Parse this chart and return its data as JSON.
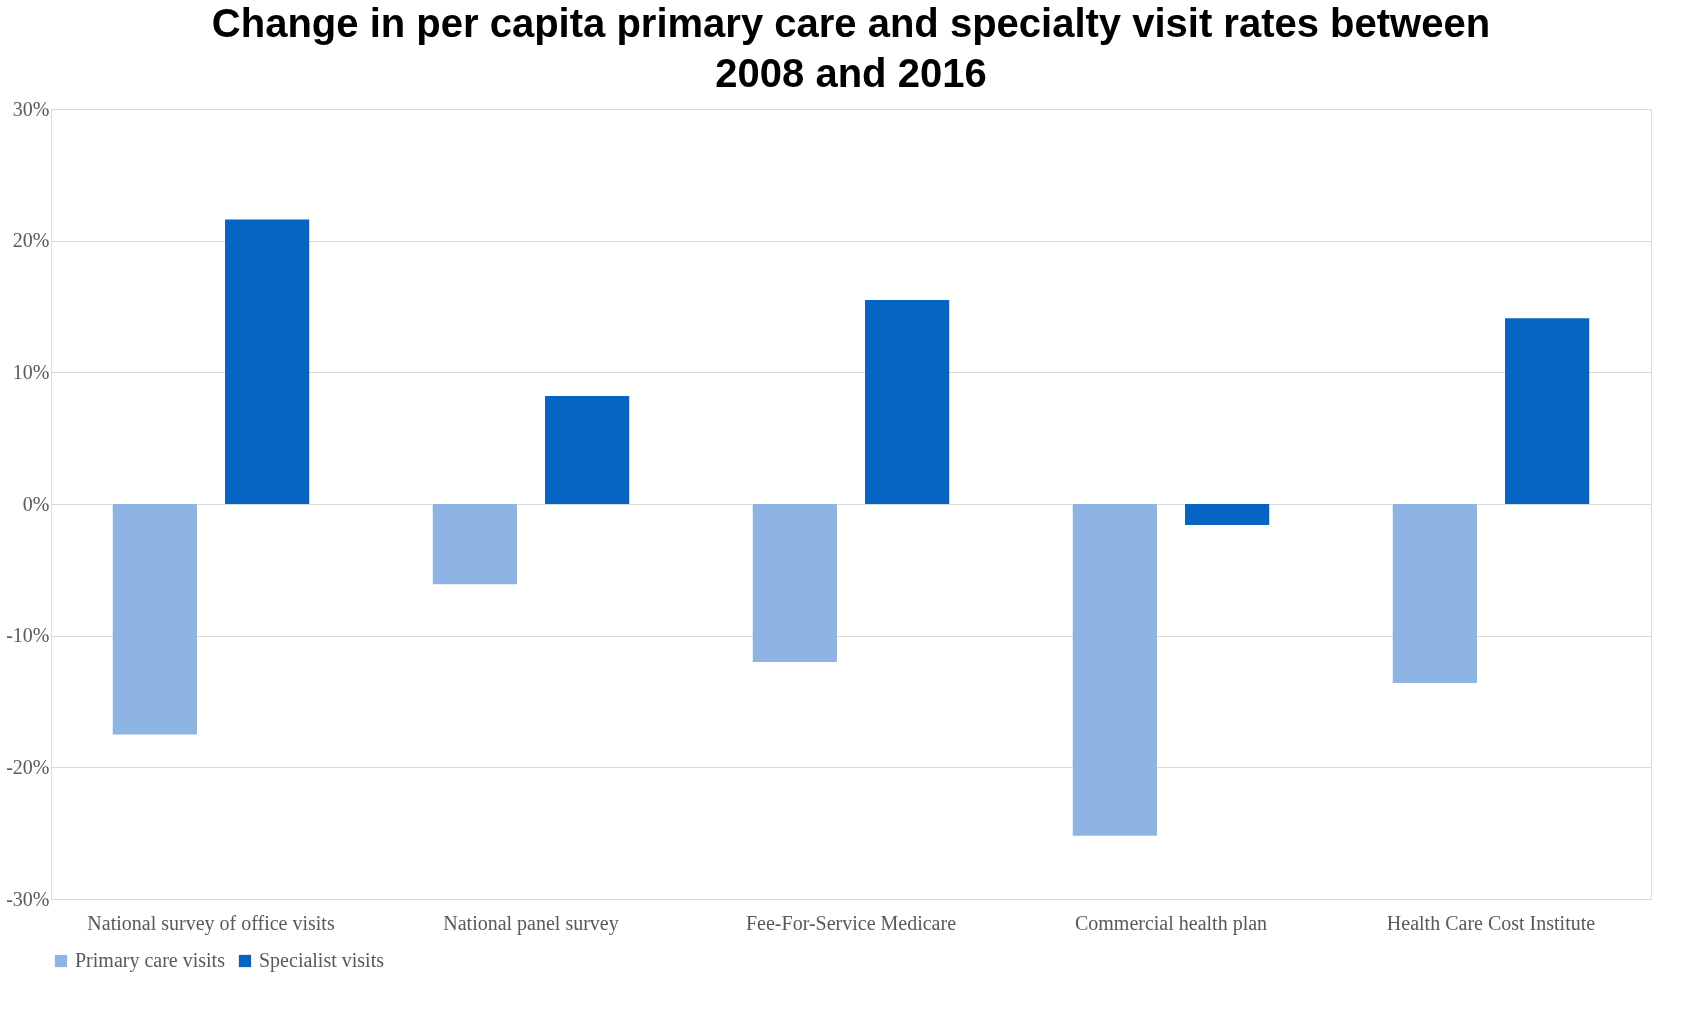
{
  "chart_data": {
    "type": "bar",
    "title": "Change in per capita primary care and specialty visit rates between 2008 and 2016",
    "categories": [
      "National survey of office visits",
      "National panel survey",
      "Fee-For-Service Medicare",
      "Commercial health plan",
      "Health Care Cost Institute"
    ],
    "series": [
      {
        "name": "Primary care visits",
        "color": "#8eb4e3",
        "values": [
          -17.5,
          -6.1,
          -12.0,
          -25.2,
          -13.6
        ]
      },
      {
        "name": "Specialist visits",
        "color": "#0563c1",
        "values": [
          21.6,
          8.2,
          15.5,
          -1.6,
          14.1
        ]
      }
    ],
    "ylim": [
      -30,
      30
    ],
    "yticks": [
      {
        "value": -30,
        "label": "-30%"
      },
      {
        "value": -20,
        "label": "-20%"
      },
      {
        "value": -10,
        "label": "-10%"
      },
      {
        "value": 0,
        "label": "0%"
      },
      {
        "value": 10,
        "label": "10%"
      },
      {
        "value": 20,
        "label": "20%"
      },
      {
        "value": 30,
        "label": "30%"
      }
    ],
    "grid": "y",
    "legend": "bottom"
  }
}
